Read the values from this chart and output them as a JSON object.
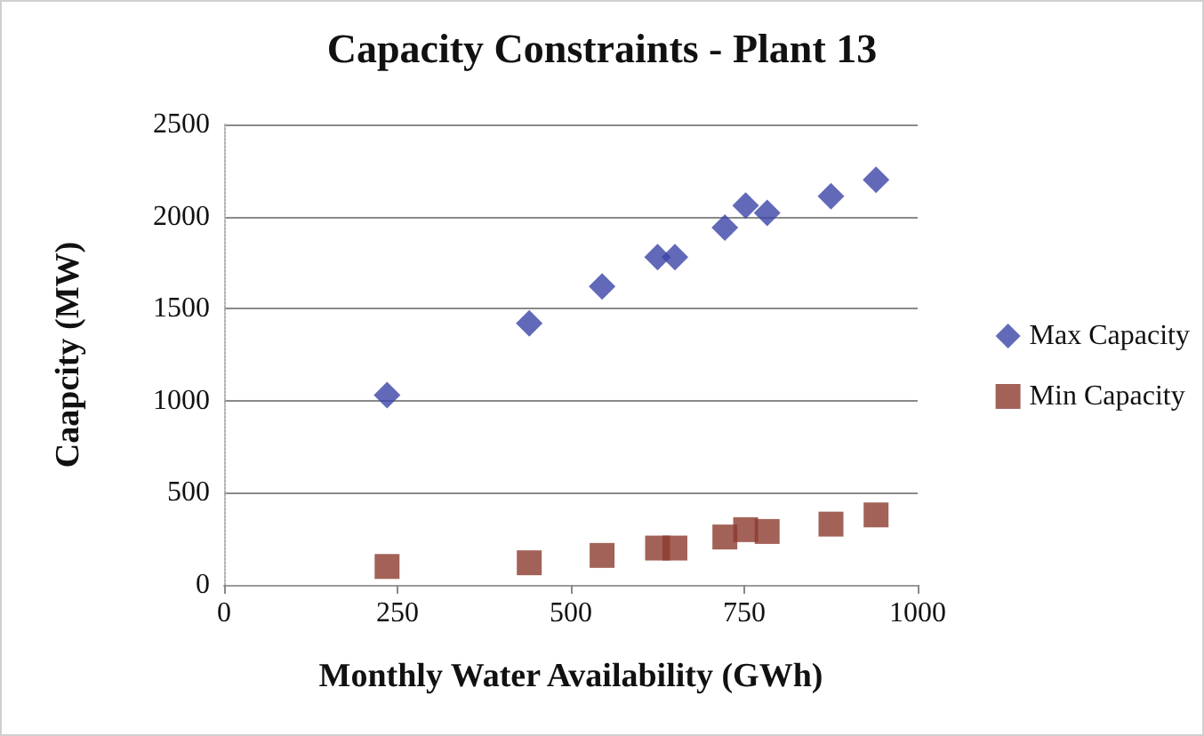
{
  "chart_data": {
    "type": "scatter",
    "title": "Capacity Constraints - Plant 13",
    "xlabel": "Monthly Water Availability (GWh)",
    "ylabel": "Caapcity (MW)",
    "x": [
      235,
      440,
      545,
      625,
      650,
      722,
      752,
      783,
      875,
      940
    ],
    "series": [
      {
        "name": "Max Capacity",
        "color": "#3b44a6",
        "marker": "diamond",
        "values": [
          1030,
          1420,
          1620,
          1780,
          1780,
          1940,
          2060,
          2020,
          2110,
          2200
        ]
      },
      {
        "name": "Min Capacity",
        "color": "#8c3b2e",
        "marker": "square",
        "values": [
          100,
          120,
          160,
          200,
          200,
          260,
          300,
          290,
          330,
          380
        ]
      }
    ],
    "xlim": [
      0,
      1000
    ],
    "xticks": [
      0,
      250,
      500,
      750,
      1000
    ],
    "ylim": [
      0,
      2500
    ],
    "yticks": [
      0,
      500,
      1000,
      1500,
      2000,
      2500
    ],
    "grid": "y",
    "legend": "right"
  }
}
